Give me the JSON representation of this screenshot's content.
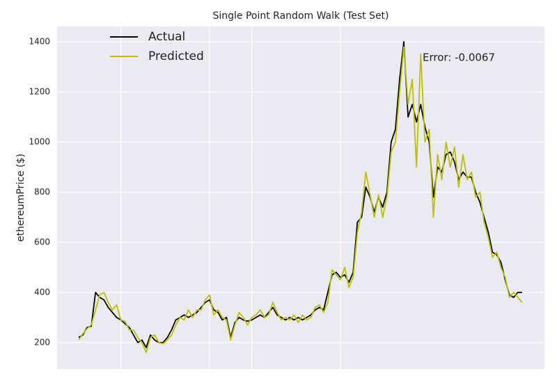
{
  "chart_data": {
    "type": "line",
    "title": "Single Point Random Walk (Test Set)",
    "ylabel": "ethereumPrice ($)",
    "annotation": "Error: -0.0067",
    "xlim": [
      -5.1,
      110.3
    ],
    "xticks": [
      10,
      31,
      41,
      62
    ],
    "ylim": [
      94,
      1461
    ],
    "yticks": [
      200,
      400,
      600,
      800,
      1000,
      1200,
      1400
    ],
    "grid": true,
    "legend": "upper left",
    "series": [
      {
        "name": "Actual",
        "color": "#000000",
        "values": [
          220,
          230,
          260,
          265,
          400,
          380,
          370,
          340,
          320,
          300,
          290,
          275,
          260,
          230,
          200,
          210,
          180,
          230,
          210,
          200,
          200,
          220,
          250,
          290,
          300,
          310,
          300,
          310,
          320,
          340,
          360,
          370,
          330,
          320,
          290,
          300,
          220,
          280,
          300,
          290,
          285,
          290,
          300,
          310,
          300,
          320,
          340,
          310,
          300,
          290,
          300,
          290,
          300,
          290,
          300,
          310,
          330,
          340,
          330,
          400,
          470,
          480,
          460,
          470,
          440,
          480,
          680,
          700,
          820,
          780,
          720,
          780,
          740,
          800,
          1000,
          1050,
          1250,
          1400,
          1100,
          1150,
          1080,
          1150,
          1060,
          1000,
          780,
          900,
          880,
          950,
          960,
          920,
          850,
          880,
          860,
          860,
          800,
          760,
          700,
          640,
          560,
          550,
          520,
          450,
          390,
          380,
          400,
          400
        ]
      },
      {
        "name": "Predicted",
        "color": "#bfbf00",
        "values": [
          210,
          235,
          255,
          270,
          330,
          390,
          400,
          360,
          330,
          350,
          290,
          285,
          250,
          250,
          220,
          200,
          160,
          220,
          230,
          200,
          195,
          210,
          230,
          270,
          300,
          290,
          330,
          300,
          330,
          330,
          370,
          390,
          310,
          330,
          300,
          290,
          210,
          270,
          320,
          300,
          270,
          300,
          310,
          330,
          300,
          310,
          360,
          320,
          290,
          300,
          290,
          310,
          280,
          310,
          290,
          300,
          340,
          350,
          320,
          360,
          490,
          470,
          450,
          500,
          420,
          460,
          640,
          720,
          880,
          790,
          700,
          790,
          700,
          780,
          960,
          1000,
          1200,
          1380,
          1150,
          1250,
          900,
          1350,
          1000,
          1050,
          700,
          950,
          850,
          1000,
          900,
          980,
          820,
          950,
          850,
          880,
          780,
          800,
          680,
          620,
          540,
          560,
          500,
          460,
          380,
          400,
          380,
          360
        ]
      }
    ]
  }
}
